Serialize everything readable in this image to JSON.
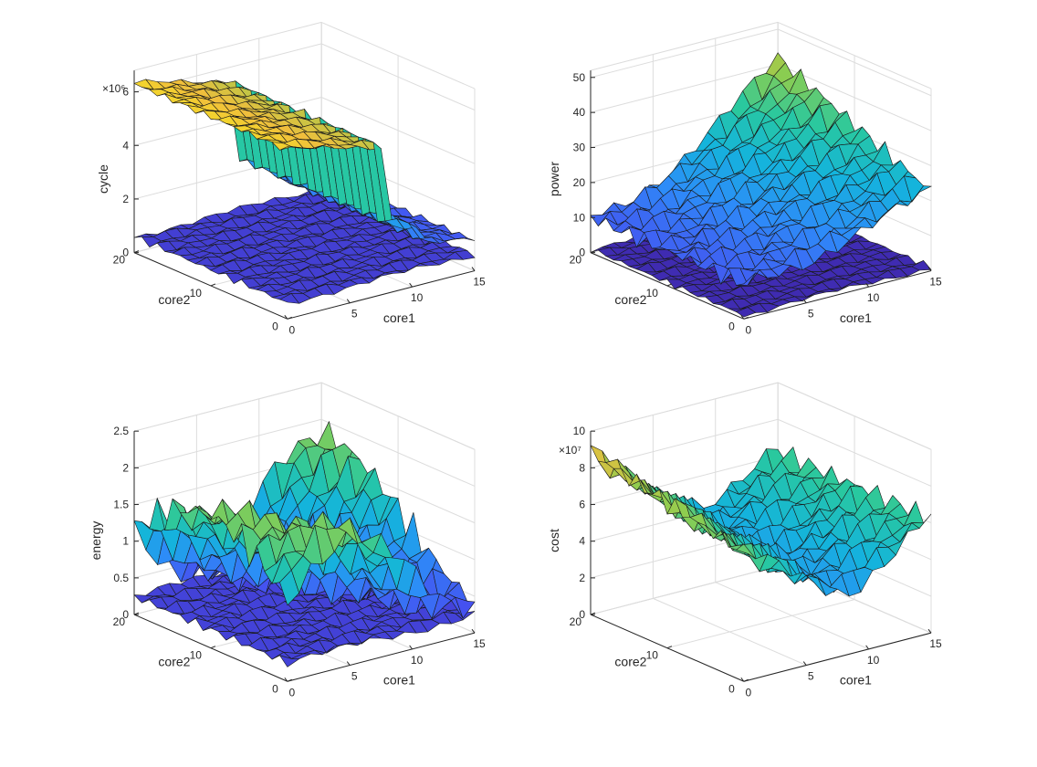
{
  "chart_data": [
    {
      "type": "surface",
      "xlabel": "core1",
      "ylabel": "core2",
      "zlabel": "cycle",
      "exponent_label": "×10⁶",
      "xlim": [
        0,
        15
      ],
      "ylim": [
        0,
        20
      ],
      "zlim": [
        0,
        6.8
      ],
      "xticks": [
        "0",
        "5",
        "10",
        "15"
      ],
      "yticks": [
        "0",
        "10",
        "20"
      ],
      "zticks": [
        "0",
        "2",
        "4",
        "6"
      ],
      "grid": true,
      "series": [
        {
          "z_range": [
            0.2,
            1.0
          ],
          "shape": "flat-low"
        },
        {
          "z_range": [
            0.4,
            6.6
          ],
          "shape": "high-plateau-falling-with-core1"
        }
      ]
    },
    {
      "type": "surface",
      "xlabel": "core1",
      "ylabel": "core2",
      "zlabel": "power",
      "exponent_label": "",
      "xlim": [
        0,
        15
      ],
      "ylim": [
        0,
        20
      ],
      "zlim": [
        0,
        52
      ],
      "xticks": [
        "0",
        "5",
        "10",
        "15"
      ],
      "yticks": [
        "0",
        "10",
        "20"
      ],
      "zticks": [
        "0",
        "10",
        "20",
        "30",
        "40",
        "50"
      ],
      "grid": true,
      "series": [
        {
          "z_range": [
            0,
            3
          ],
          "shape": "flat-low"
        },
        {
          "z_range": [
            5,
            50
          ],
          "shape": "rising-with-core1"
        }
      ]
    },
    {
      "type": "surface",
      "xlabel": "core1",
      "ylabel": "core2",
      "zlabel": "energy",
      "exponent_label": "",
      "xlim": [
        0,
        15
      ],
      "ylim": [
        0,
        20
      ],
      "zlim": [
        0,
        2.5
      ],
      "xticks": [
        "0",
        "5",
        "10",
        "15"
      ],
      "yticks": [
        "0",
        "10",
        "20"
      ],
      "zticks": [
        "0",
        "0.5",
        "1",
        "1.5",
        "2",
        "2.5"
      ],
      "grid": true,
      "series": [
        {
          "z_range": [
            0,
            0.5
          ],
          "shape": "flat-low"
        },
        {
          "z_range": [
            0.2,
            2.2
          ],
          "shape": "folded-ridges"
        }
      ]
    },
    {
      "type": "surface",
      "xlabel": "core1",
      "ylabel": "core2",
      "zlabel": "cost",
      "exponent_label": "×10⁷",
      "xlim": [
        0,
        15
      ],
      "ylim": [
        0,
        20
      ],
      "zlim": [
        0,
        10
      ],
      "xticks": [
        "0",
        "5",
        "10",
        "15"
      ],
      "yticks": [
        "0",
        "10",
        "20"
      ],
      "zticks": [
        "0",
        "2",
        "4",
        "6",
        "8",
        "10"
      ],
      "grid": true,
      "series": [
        {
          "z_range": [
            1,
            10
          ],
          "shape": "valley"
        }
      ]
    }
  ]
}
